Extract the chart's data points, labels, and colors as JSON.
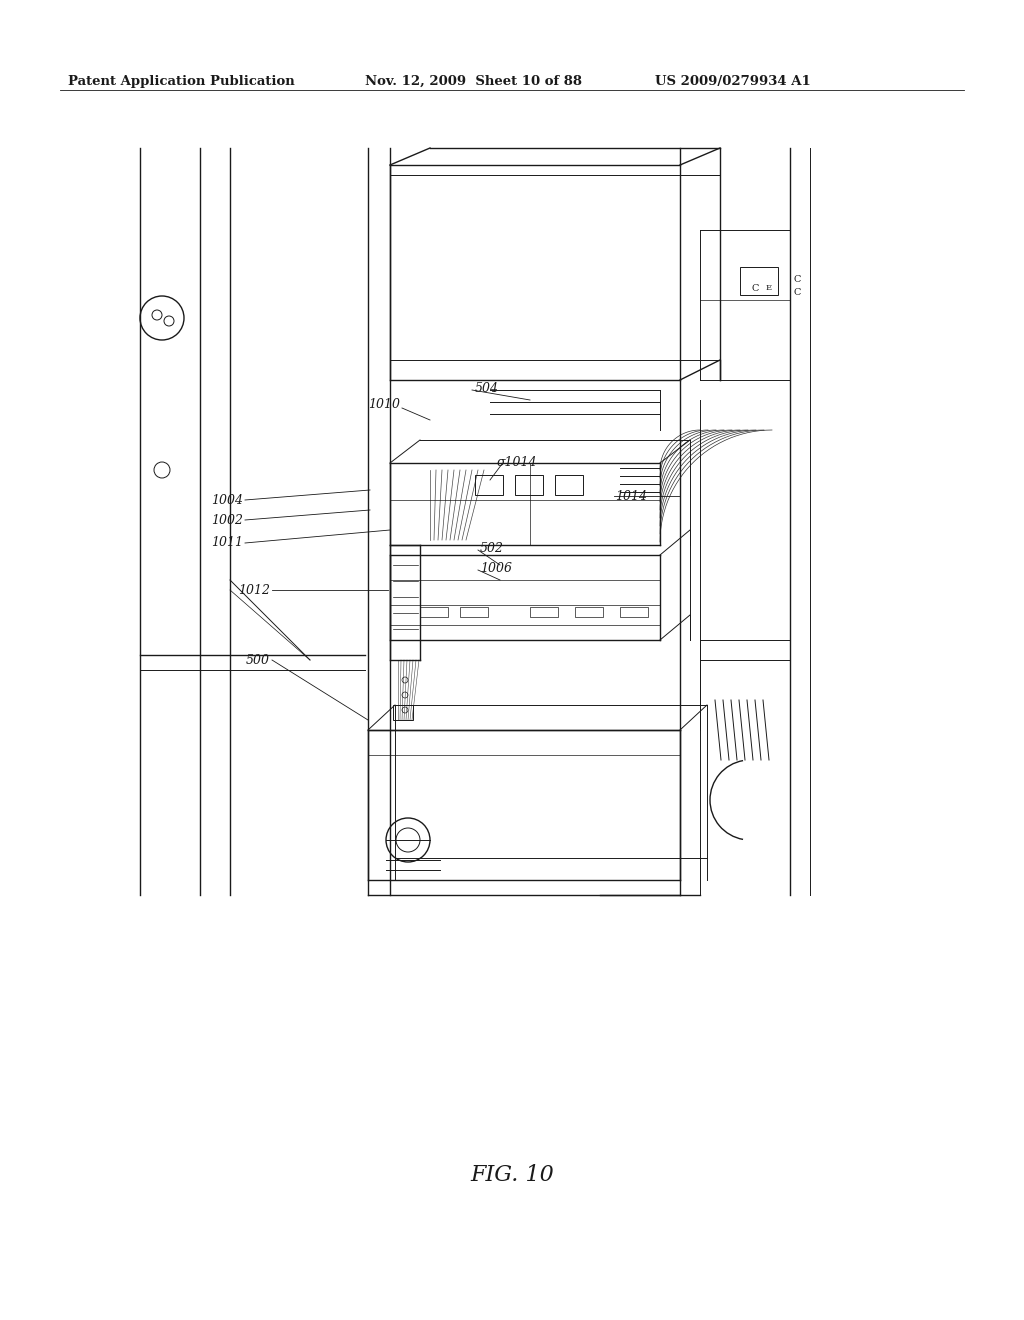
{
  "bg_color": "#ffffff",
  "header_text": "Patent Application Publication",
  "header_date": "Nov. 12, 2009  Sheet 10 of 88",
  "header_patent": "US 2009/0279934 A1",
  "fig_label": "FIG. 10",
  "dark": "#1a1a1a",
  "mid": "#555555",
  "light": "#999999"
}
